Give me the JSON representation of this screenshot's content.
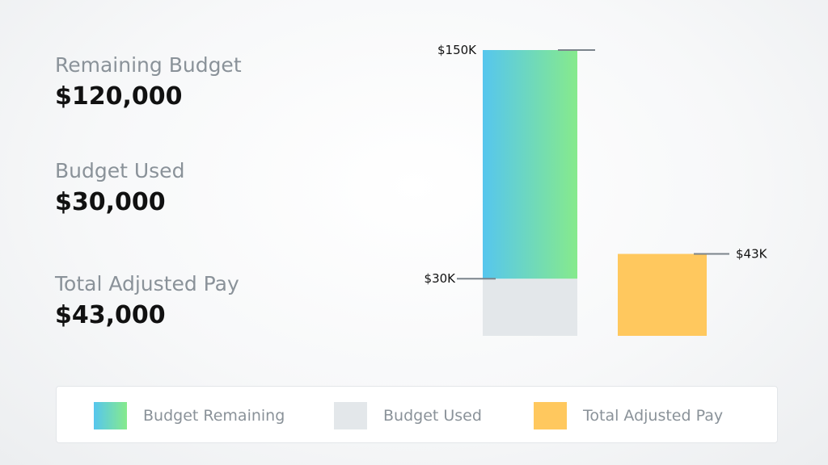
{
  "stats": [
    {
      "label": "Remaining Budget",
      "value": "$120,000"
    },
    {
      "label": "Budget Used",
      "value": "$30,000"
    },
    {
      "label": "Total Adjusted Pay",
      "value": "$43,000"
    }
  ],
  "chart_data": {
    "type": "bar",
    "stacked": true,
    "ylim": [
      0,
      150
    ],
    "bars": [
      {
        "segments": [
          {
            "series": "Budget Used",
            "value": 30
          },
          {
            "series": "Budget Remaining",
            "value": 120
          }
        ]
      },
      {
        "segments": [
          {
            "series": "Total Adjusted Pay",
            "value": 43
          }
        ]
      }
    ],
    "annotations": [
      {
        "label": "$150K",
        "value": 150,
        "side": "left"
      },
      {
        "label": "$30K",
        "value": 30,
        "side": "left"
      },
      {
        "label": "$43K",
        "value": 43,
        "side": "right"
      }
    ],
    "legend": [
      {
        "name": "Budget Remaining"
      },
      {
        "name": "Budget Used"
      },
      {
        "name": "Total Adjusted Pay"
      }
    ],
    "legend_position": "bottom",
    "colors": {
      "Budget Remaining": [
        "#56c6ee",
        "#86ea8c"
      ],
      "Budget Used": "#e3e7ea",
      "Total Adjusted Pay": "#ffc85e",
      "leader_line": "#7b848b"
    },
    "grid": false
  }
}
